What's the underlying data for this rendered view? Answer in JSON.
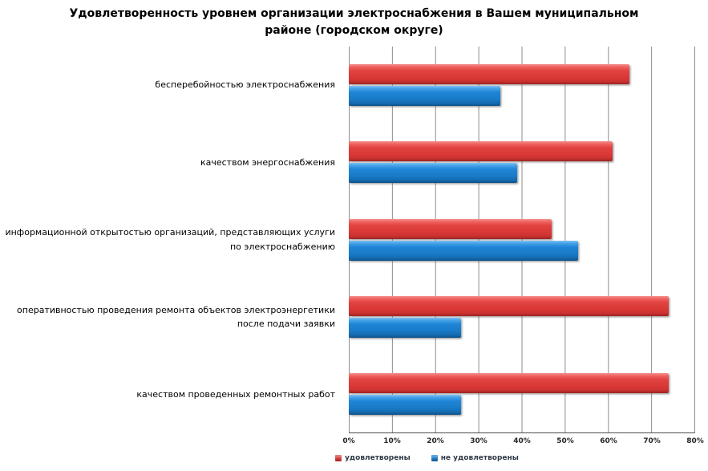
{
  "chart_data": {
    "type": "bar",
    "orientation": "horizontal",
    "title": "Удовлетворенность уровнем организации электроснабжения в Вашем муниципальном районе (городском округе)",
    "categories": [
      "бесперебойностью  электроснабжения",
      "качеством энергоснабжения",
      "информационной  открытостью  организаций, представляющих услуги по электроснабжению",
      "оперативностью проведения ремонта  объектов электроэнергетики после  подачи заявки",
      "качеством проведенных ремонтных  работ"
    ],
    "series": [
      {
        "name": "удовлетворены",
        "color": "#da3937",
        "values": [
          65,
          61,
          47,
          74,
          74
        ]
      },
      {
        "name": "не удовлетворены",
        "color": "#1a7cca",
        "values": [
          35,
          39,
          53,
          26,
          26
        ]
      }
    ],
    "x_ticks": [
      "0%",
      "10%",
      "20%",
      "30%",
      "40%",
      "50%",
      "60%",
      "70%",
      "80%"
    ],
    "xlim": [
      0,
      80
    ],
    "grid": "vertical",
    "legend_position": "bottom"
  }
}
